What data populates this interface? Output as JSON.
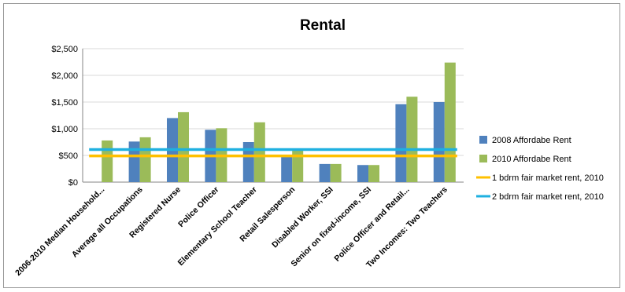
{
  "chart_data": {
    "type": "bar",
    "title": "Rental",
    "xlabel": "",
    "ylabel": "",
    "ylim": [
      0,
      2500
    ],
    "yticks": [
      0,
      500,
      1000,
      1500,
      2000,
      2500
    ],
    "ytick_labels": [
      "$0",
      "$500",
      "$1,000",
      "$1,500",
      "$2,000",
      "$2,500"
    ],
    "grid": true,
    "legend_position": "right",
    "categories": [
      "2006-2010 Median Household...",
      "Average all Occupations",
      "Registered Nurse",
      "Police Officer",
      "Elementary School Teacher",
      "Retail Salesperson",
      "Disabled Worker, SSI",
      "Senior on fixed-income, SSI",
      "Police Officer and Retail...",
      "Two Incomes:  Two Teachers"
    ],
    "series": [
      {
        "name": "2008 Affordabe Rent",
        "color": "#4f81bd",
        "values": [
          null,
          760,
          1200,
          980,
          750,
          470,
          340,
          320,
          1460,
          1500
        ]
      },
      {
        "name": "2010 Affordabe Rent",
        "color": "#9bbb59",
        "values": [
          780,
          840,
          1310,
          1010,
          1120,
          600,
          340,
          320,
          1600,
          2240
        ]
      }
    ],
    "reference_lines": [
      {
        "name": "1 bdrm fair market rent, 2010",
        "color": "#ffc000",
        "value": 490
      },
      {
        "name": "2 bdrm fair market rent, 2010",
        "color": "#1fb0e0",
        "value": 610
      }
    ]
  }
}
